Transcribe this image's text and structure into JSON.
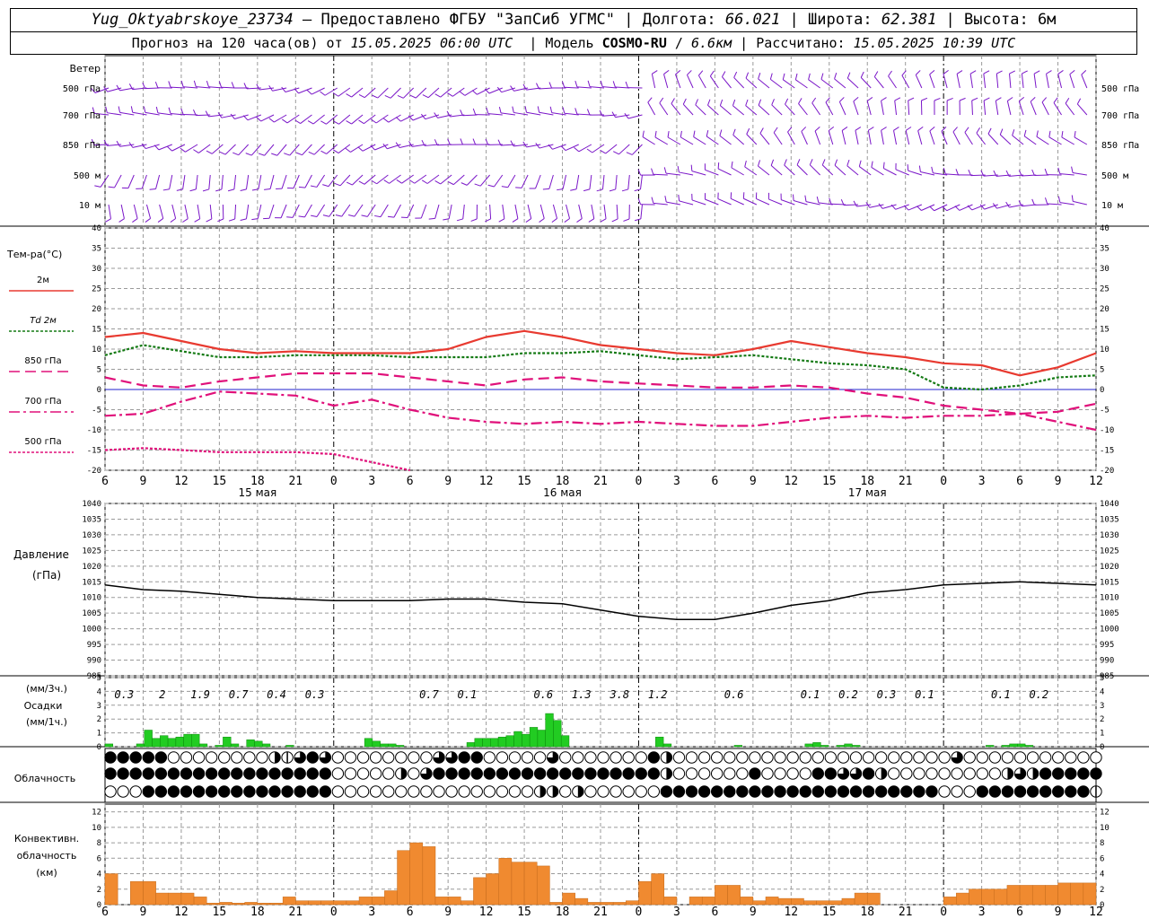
{
  "header": {
    "station": "Yug_Oktyabrskoye_23734",
    "provided_by": "Предоставлено ФГБУ \"ЗапСиб УГМС\"",
    "lon_label": "Долгота:",
    "lon": "66.021",
    "lat_label": "Широта:",
    "lat": "62.381",
    "alt_label": "Высота:",
    "alt": "6м",
    "forecast_prefix": "Прогноз на 120 часа(ов) от",
    "forecast_start": "15.05.2025 06:00 UTC",
    "model_label": "Модель",
    "model": "COSMO-RU",
    "model_res": "6.6км",
    "calc_label": "Рассчитано:",
    "calc_time": "15.05.2025 10:39 UTC"
  },
  "colors": {
    "t2m": "#e83a30",
    "td2m": "#147a14",
    "t850": "#e0107a",
    "t700": "#e0107a",
    "t500": "#e0107a",
    "zero": "#2222cc",
    "wind": "#7a16c8",
    "precip": "#22cc22",
    "conv": "#f08a30",
    "pressure": "#000000",
    "grid": "#9a9a9a"
  },
  "time_axis": {
    "hour_ticks": [
      "6",
      "9",
      "12",
      "15",
      "18",
      "21",
      "0",
      "3",
      "6",
      "9",
      "12",
      "15",
      "18",
      "21",
      "0",
      "3",
      "6",
      "9",
      "12",
      "15",
      "18",
      "21",
      "0",
      "3",
      "6",
      "9",
      "12"
    ],
    "date_labels": [
      {
        "text": "15 мая",
        "at_hour": 12
      },
      {
        "text": "16 мая",
        "at_hour": 36
      },
      {
        "text": "17 мая",
        "at_hour": 60
      }
    ]
  },
  "wind_panel": {
    "title": "Ветер",
    "levels": [
      "500 гПа",
      "700 гПа",
      "850 гПа",
      "500 м",
      "10 м"
    ]
  },
  "chart_data": [
    {
      "type": "line",
      "name": "temperature",
      "ylabel": "Тем-ра(°C)",
      "ylim": [
        -20,
        40
      ],
      "yticks": [
        -20,
        -15,
        -10,
        -5,
        0,
        5,
        10,
        15,
        20,
        25,
        30,
        35,
        40
      ],
      "x_hours": [
        0,
        3,
        6,
        9,
        12,
        15,
        18,
        21,
        24,
        27,
        30,
        33,
        36,
        39,
        42,
        45,
        48,
        51,
        54,
        57,
        60,
        63,
        66,
        69,
        72,
        75,
        78
      ],
      "series": [
        {
          "name": "2м",
          "values": [
            13,
            14,
            12,
            10,
            9,
            9.5,
            9,
            9,
            9,
            10,
            13,
            14.5,
            13,
            11,
            10,
            9,
            8.5,
            10,
            12,
            10.5,
            9,
            8,
            6.5,
            6,
            3.5,
            5.5,
            9
          ]
        },
        {
          "name": "Td 2м",
          "values": [
            8.5,
            11,
            9.5,
            8,
            8,
            8.5,
            8.5,
            8.5,
            8,
            8,
            8,
            9,
            9,
            9.5,
            8.5,
            7.5,
            8,
            8.5,
            7.5,
            6.5,
            6,
            5,
            0.5,
            0,
            1,
            3,
            3.5
          ]
        },
        {
          "name": "850 гПа",
          "values": [
            3,
            1,
            0.5,
            2,
            3,
            4,
            4,
            4,
            3,
            2,
            1,
            2.5,
            3,
            2,
            1.5,
            1,
            0.5,
            0.5,
            1,
            0.5,
            -1,
            -2,
            -4,
            -5,
            -6,
            -5.5,
            -3.5
          ]
        },
        {
          "name": "700 гПа",
          "values": [
            -6.5,
            -6,
            -3,
            -0.5,
            -1,
            -1.5,
            -4,
            -2.5,
            -5,
            -7,
            -8,
            -8.5,
            -8,
            -8.5,
            -8,
            -8.5,
            -9,
            -9,
            -8,
            -7,
            -6.5,
            -7,
            -6.5,
            -6.5,
            -6,
            -8,
            -10
          ]
        },
        {
          "name": "500 гПа",
          "values": [
            -15,
            -14.5,
            -15,
            -15.5,
            -15.5,
            -15.5,
            -16,
            -18,
            -20,
            null,
            null,
            null,
            null,
            null,
            null,
            null,
            null,
            null,
            null,
            null,
            null,
            null,
            null,
            null,
            null,
            null,
            null
          ]
        }
      ]
    },
    {
      "type": "line",
      "name": "pressure",
      "ylabel": "Давление",
      "yunit": "(гПа)",
      "ylim": [
        985,
        1040
      ],
      "yticks": [
        985,
        990,
        995,
        1000,
        1005,
        1010,
        1015,
        1020,
        1025,
        1030,
        1035,
        1040
      ],
      "x_hours": [
        0,
        3,
        6,
        9,
        12,
        15,
        18,
        21,
        24,
        27,
        30,
        33,
        36,
        39,
        42,
        45,
        48,
        51,
        54,
        57,
        60,
        63,
        66,
        69,
        72,
        75,
        78
      ],
      "values": [
        1014,
        1012.5,
        1012,
        1011,
        1010,
        1009.5,
        1009,
        1009,
        1009,
        1009.5,
        1009.5,
        1008.5,
        1008,
        1006,
        1004,
        1003,
        1003,
        1005,
        1007.5,
        1009,
        1011.5,
        1012.5,
        1014,
        1014.5,
        1015,
        1014.5,
        1014
      ]
    },
    {
      "type": "bar",
      "name": "precipitation",
      "ylabel_top": "(мм/3ч.)",
      "ylabel_mid": "Осадки",
      "ylabel_bot": "(мм/1ч.)",
      "ylim": [
        0,
        5
      ],
      "yticks": [
        0,
        1,
        2,
        3,
        4,
        5
      ],
      "hourly_values": [
        0.2,
        0,
        0,
        0,
        0.2,
        1.2,
        0.6,
        0.8,
        0.6,
        0.7,
        0.9,
        0.9,
        0.2,
        0,
        0.1,
        0.7,
        0.2,
        0,
        0.5,
        0.4,
        0.2,
        0,
        0,
        0.1,
        0,
        0,
        0,
        0,
        0,
        0,
        0,
        0,
        0,
        0.6,
        0.4,
        0.2,
        0.2,
        0.1,
        0,
        0,
        0,
        0,
        0,
        0,
        0,
        0,
        0.3,
        0.6,
        0.6,
        0.6,
        0.7,
        0.8,
        1.1,
        0.9,
        1.4,
        1.2,
        2.4,
        1.9,
        0.8,
        0,
        0,
        0,
        0,
        0,
        0,
        0,
        0,
        0,
        0,
        0,
        0.7,
        0.2,
        0,
        0,
        0,
        0,
        0,
        0,
        0,
        0,
        0.1,
        0,
        0,
        0,
        0,
        0,
        0,
        0,
        0,
        0.2,
        0.3,
        0.1,
        0,
        0.1,
        0.2,
        0.1,
        0,
        0,
        0,
        0,
        0,
        0,
        0,
        0,
        0,
        0,
        0,
        0,
        0,
        0,
        0,
        0,
        0.1,
        0,
        0.1,
        0.2,
        0.2,
        0.1,
        0,
        0,
        0,
        0,
        0,
        0,
        0,
        0
      ],
      "three_hour_labels": [
        {
          "text": "0.3",
          "at_hour": 1.5
        },
        {
          "text": "2",
          "at_hour": 4.5
        },
        {
          "text": "1.9",
          "at_hour": 7.5
        },
        {
          "text": "0.7",
          "at_hour": 10.5
        },
        {
          "text": "0.4",
          "at_hour": 13.5
        },
        {
          "text": "0.3",
          "at_hour": 16.5
        },
        {
          "text": "0.7",
          "at_hour": 25.5
        },
        {
          "text": "0.1",
          "at_hour": 28.5
        },
        {
          "text": "0.6",
          "at_hour": 34.5
        },
        {
          "text": "1.3",
          "at_hour": 37.5
        },
        {
          "text": "3.8",
          "at_hour": 40.5
        },
        {
          "text": "1.2",
          "at_hour": 43.5
        },
        {
          "text": "0.6",
          "at_hour": 49.5
        },
        {
          "text": "0.1",
          "at_hour": 55.5
        },
        {
          "text": "0.2",
          "at_hour": 58.5
        },
        {
          "text": "0.3",
          "at_hour": 61.5
        },
        {
          "text": "0.1",
          "at_hour": 64.5
        },
        {
          "text": "0.1",
          "at_hour": 70.5
        },
        {
          "text": "0.2",
          "at_hour": 73.5
        }
      ]
    },
    {
      "type": "table",
      "name": "cloudiness",
      "ylabel": "Облачность",
      "legend_codes": "0 = clear, 1 = quarter, 2 = half, 3 = three quarters, 4 = overcast",
      "rows": [
        [
          4,
          4,
          4,
          4,
          4,
          0,
          0,
          0,
          0,
          0,
          0,
          0,
          0,
          2,
          1,
          3,
          4,
          3,
          0,
          0,
          0,
          0,
          0,
          0,
          0,
          0,
          3,
          3,
          4,
          4,
          0,
          0,
          0,
          0,
          0,
          3,
          0,
          0,
          0,
          0,
          0,
          0,
          0,
          4,
          2,
          0,
          0,
          0,
          0,
          0,
          0,
          0,
          0,
          0,
          0,
          0,
          0,
          0,
          0,
          0,
          0,
          0,
          0,
          0,
          0,
          0,
          0,
          3,
          0,
          0,
          0,
          0,
          0,
          0,
          0,
          0,
          0,
          0,
          0
        ],
        [
          4,
          4,
          4,
          4,
          4,
          4,
          4,
          4,
          4,
          4,
          4,
          4,
          4,
          4,
          4,
          4,
          4,
          4,
          0,
          0,
          0,
          0,
          0,
          2,
          0,
          3,
          4,
          4,
          4,
          4,
          4,
          4,
          4,
          4,
          4,
          4,
          4,
          4,
          4,
          4,
          4,
          4,
          4,
          4,
          2,
          0,
          0,
          0,
          0,
          0,
          0,
          4,
          0,
          0,
          0,
          0,
          4,
          4,
          3,
          3,
          4,
          2,
          0,
          0,
          0,
          0,
          0,
          0,
          0,
          0,
          0,
          2,
          3,
          2,
          4,
          4,
          4,
          4,
          4
        ],
        [
          0,
          0,
          0,
          4,
          4,
          4,
          4,
          4,
          4,
          4,
          4,
          4,
          4,
          4,
          4,
          4,
          4,
          4,
          0,
          0,
          0,
          0,
          0,
          0,
          0,
          0,
          0,
          0,
          0,
          0,
          0,
          0,
          0,
          0,
          2,
          2,
          0,
          2,
          0,
          0,
          0,
          0,
          0,
          0,
          4,
          4,
          4,
          4,
          4,
          4,
          4,
          4,
          4,
          4,
          4,
          4,
          4,
          4,
          4,
          4,
          4,
          4,
          4,
          4,
          4,
          4,
          0,
          0,
          0,
          4,
          4,
          4,
          4,
          4,
          4,
          4,
          4,
          4,
          1
        ]
      ]
    },
    {
      "type": "bar",
      "name": "convective",
      "ylabel": "Конвективн.",
      "ylabel2": "облачность",
      "yunit": "(км)",
      "ylim": [
        0,
        13
      ],
      "yticks": [
        0,
        2,
        4,
        6,
        8,
        10,
        12
      ],
      "x_hours": [
        0,
        1,
        2,
        3,
        4,
        5,
        6,
        7,
        8,
        9,
        10,
        11,
        12,
        13,
        14,
        15,
        16,
        17,
        18,
        19,
        20,
        21,
        22,
        23,
        24,
        25,
        26,
        27,
        28,
        29,
        30,
        31,
        32,
        33,
        34,
        35,
        36,
        37,
        38,
        39,
        40,
        41,
        42,
        43,
        44,
        45,
        46,
        47,
        48,
        49,
        50,
        51,
        52,
        53,
        54,
        55,
        56,
        57,
        58,
        59,
        60,
        61,
        62,
        63,
        64,
        65,
        66,
        67,
        68,
        69,
        70,
        71,
        72,
        73,
        74,
        75,
        76,
        77
      ],
      "values": [
        4,
        0,
        3,
        3,
        1.5,
        1.5,
        1.5,
        1,
        0.2,
        0.3,
        0.2,
        0.3,
        0.2,
        0.2,
        1,
        0.5,
        0.5,
        0.5,
        0.5,
        0.5,
        1,
        1,
        1.8,
        7,
        8,
        7.5,
        1,
        1,
        0.5,
        3.5,
        4,
        6,
        5.5,
        5.5,
        5,
        0.3,
        1.5,
        0.8,
        0.3,
        0.3,
        0.3,
        0.5,
        3,
        4,
        1,
        0,
        1,
        1,
        2.5,
        2.5,
        1,
        0.5,
        1,
        0.8,
        0.8,
        0.5,
        0.5,
        0.5,
        0.8,
        1.5,
        1.5,
        0,
        0,
        0,
        0,
        0,
        1,
        1.5,
        2,
        2,
        2,
        2.5,
        2.5,
        2.5,
        2.5,
        2.8,
        2.8,
        2.8
      ]
    }
  ]
}
